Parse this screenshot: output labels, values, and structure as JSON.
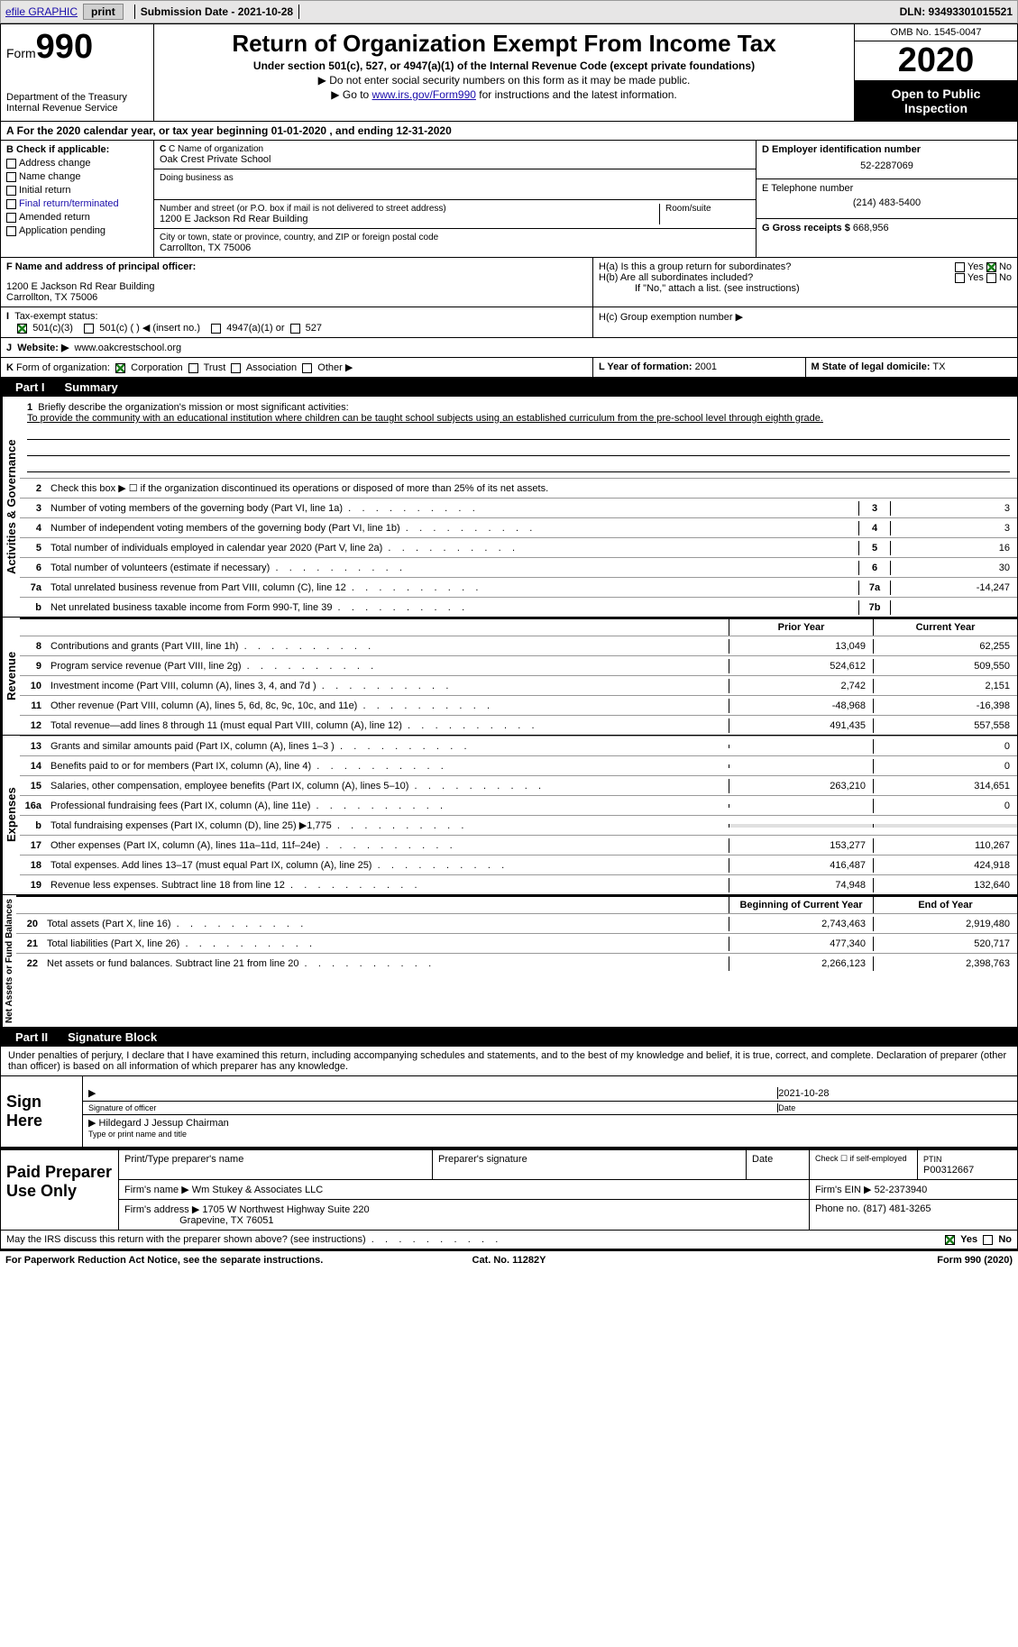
{
  "topbar": {
    "efile": "efile GRAPHIC",
    "print": "print",
    "submission": "Submission Date - 2021-10-28",
    "dln": "DLN: 93493301015521"
  },
  "header": {
    "form_label": "Form",
    "form_num": "990",
    "dept1": "Department of the Treasury",
    "dept2": "Internal Revenue Service",
    "title": "Return of Organization Exempt From Income Tax",
    "subtitle": "Under section 501(c), 527, or 4947(a)(1) of the Internal Revenue Code (except private foundations)",
    "arrow1": "▶ Do not enter social security numbers on this form as it may be made public.",
    "arrow2_pre": "▶ Go to ",
    "arrow2_link": "www.irs.gov/Form990",
    "arrow2_post": " for instructions and the latest information.",
    "omb": "OMB No. 1545-0047",
    "year": "2020",
    "open": "Open to Public Inspection"
  },
  "taxyear": "For the 2020 calendar year, or tax year beginning 01-01-2020    , and ending 12-31-2020",
  "sectionB": {
    "header": "B Check if applicable:",
    "items": [
      "Address change",
      "Name change",
      "Initial return",
      "Final return/terminated",
      "Amended return",
      "Application pending"
    ]
  },
  "orgName": {
    "label": "C Name of organization",
    "value": "Oak Crest Private School",
    "dba": "Doing business as"
  },
  "street": {
    "label": "Number and street (or P.O. box if mail is not delivered to street address)",
    "room_label": "Room/suite",
    "value": "1200 E Jackson Rd Rear Building"
  },
  "city": {
    "label": "City or town, state or province, country, and ZIP or foreign postal code",
    "value": "Carrollton, TX  75006"
  },
  "ein": {
    "label": "D Employer identification number",
    "value": "52-2287069"
  },
  "phone": {
    "label": "E Telephone number",
    "value": "(214) 483-5400"
  },
  "gross": {
    "label": "G Gross receipts $",
    "value": "668,956"
  },
  "officer": {
    "label": "F  Name and address of principal officer:",
    "addr1": "1200 E Jackson Rd Rear Building",
    "addr2": "Carrollton, TX  75006"
  },
  "groupH": {
    "ha": "H(a)  Is this a group return for subordinates?",
    "hb": "H(b)  Are all subordinates included?",
    "hnote": "If \"No,\" attach a list. (see instructions)",
    "hc": "H(c)  Group exemption number ▶",
    "yes": "Yes",
    "no": "No"
  },
  "taxExempt": {
    "label": "Tax-exempt status:",
    "opts": [
      "501(c)(3)",
      "501(c) (  ) ◀ (insert no.)",
      "4947(a)(1) or",
      "527"
    ]
  },
  "website": {
    "label": "Website: ▶",
    "value": "www.oakcrestschool.org"
  },
  "formOrg": {
    "label": "Form of organization:",
    "opts": [
      "Corporation",
      "Trust",
      "Association",
      "Other ▶"
    ]
  },
  "yearFormed": {
    "label": "L Year of formation:",
    "value": "2001"
  },
  "domicile": {
    "label": "M State of legal domicile:",
    "value": "TX"
  },
  "part1": {
    "header": "Part I",
    "title": "Summary",
    "q1": "Briefly describe the organization's mission or most significant activities:",
    "mission": "To provide the community with an educational institution where children can be taught school subjects using an established curriculum from the pre-school level through eighth grade.",
    "q2": "Check this box ▶ ☐  if the organization discontinued its operations or disposed of more than 25% of its net assets.",
    "sideA": "Activities & Governance",
    "sideB": "Revenue",
    "sideC": "Expenses",
    "sideD": "Net Assets or Fund Balances",
    "prior_year": "Prior Year",
    "current_year": "Current Year",
    "boy": "Beginning of Current Year",
    "eoy": "End of Year",
    "rows_gov": [
      {
        "n": "3",
        "t": "Number of voting members of the governing body (Part VI, line 1a)",
        "box": "3",
        "v": "3"
      },
      {
        "n": "4",
        "t": "Number of independent voting members of the governing body (Part VI, line 1b)",
        "box": "4",
        "v": "3"
      },
      {
        "n": "5",
        "t": "Total number of individuals employed in calendar year 2020 (Part V, line 2a)",
        "box": "5",
        "v": "16"
      },
      {
        "n": "6",
        "t": "Total number of volunteers (estimate if necessary)",
        "box": "6",
        "v": "30"
      },
      {
        "n": "7a",
        "t": "Total unrelated business revenue from Part VIII, column (C), line 12",
        "box": "7a",
        "v": "-14,247"
      },
      {
        "n": "b",
        "t": "Net unrelated business taxable income from Form 990-T, line 39",
        "box": "7b",
        "v": ""
      }
    ],
    "rows_rev": [
      {
        "n": "8",
        "t": "Contributions and grants (Part VIII, line 1h)",
        "py": "13,049",
        "cy": "62,255"
      },
      {
        "n": "9",
        "t": "Program service revenue (Part VIII, line 2g)",
        "py": "524,612",
        "cy": "509,550"
      },
      {
        "n": "10",
        "t": "Investment income (Part VIII, column (A), lines 3, 4, and 7d )",
        "py": "2,742",
        "cy": "2,151"
      },
      {
        "n": "11",
        "t": "Other revenue (Part VIII, column (A), lines 5, 6d, 8c, 9c, 10c, and 11e)",
        "py": "-48,968",
        "cy": "-16,398"
      },
      {
        "n": "12",
        "t": "Total revenue—add lines 8 through 11 (must equal Part VIII, column (A), line 12)",
        "py": "491,435",
        "cy": "557,558"
      }
    ],
    "rows_exp": [
      {
        "n": "13",
        "t": "Grants and similar amounts paid (Part IX, column (A), lines 1–3 )",
        "py": "",
        "cy": "0"
      },
      {
        "n": "14",
        "t": "Benefits paid to or for members (Part IX, column (A), line 4)",
        "py": "",
        "cy": "0"
      },
      {
        "n": "15",
        "t": "Salaries, other compensation, employee benefits (Part IX, column (A), lines 5–10)",
        "py": "263,210",
        "cy": "314,651"
      },
      {
        "n": "16a",
        "t": "Professional fundraising fees (Part IX, column (A), line 11e)",
        "py": "",
        "cy": "0"
      },
      {
        "n": "b",
        "t": "Total fundraising expenses (Part IX, column (D), line 25) ▶1,775",
        "py": "__GRAY__",
        "cy": "__GRAY__"
      },
      {
        "n": "17",
        "t": "Other expenses (Part IX, column (A), lines 11a–11d, 11f–24e)",
        "py": "153,277",
        "cy": "110,267"
      },
      {
        "n": "18",
        "t": "Total expenses. Add lines 13–17 (must equal Part IX, column (A), line 25)",
        "py": "416,487",
        "cy": "424,918"
      },
      {
        "n": "19",
        "t": "Revenue less expenses. Subtract line 18 from line 12",
        "py": "74,948",
        "cy": "132,640"
      }
    ],
    "rows_net": [
      {
        "n": "20",
        "t": "Total assets (Part X, line 16)",
        "py": "2,743,463",
        "cy": "2,919,480"
      },
      {
        "n": "21",
        "t": "Total liabilities (Part X, line 26)",
        "py": "477,340",
        "cy": "520,717"
      },
      {
        "n": "22",
        "t": "Net assets or fund balances. Subtract line 21 from line 20",
        "py": "2,266,123",
        "cy": "2,398,763"
      }
    ]
  },
  "part2": {
    "header": "Part II",
    "title": "Signature Block",
    "decl": "Under penalties of perjury, I declare that I have examined this return, including accompanying schedules and statements, and to the best of my knowledge and belief, it is true, correct, and complete. Declaration of preparer (other than officer) is based on all information of which preparer has any knowledge.",
    "sign_here": "Sign Here",
    "sig_officer": "Signature of officer",
    "sig_date": "2021-10-28",
    "date_label": "Date",
    "name_title": "Hildegard J Jessup Chairman",
    "name_label": "Type or print name and title",
    "paid_prep": "Paid Preparer Use Only",
    "prep_name_label": "Print/Type preparer's name",
    "prep_sig_label": "Preparer's signature",
    "prep_date_label": "Date",
    "check_self": "Check ☐ if self-employed",
    "ptin_label": "PTIN",
    "ptin": "P00312667",
    "firm_name_label": "Firm's name    ▶",
    "firm_name": "Wm Stukey & Associates LLC",
    "firm_ein_label": "Firm's EIN ▶",
    "firm_ein": "52-2373940",
    "firm_addr_label": "Firm's address ▶",
    "firm_addr1": "1705 W Northwest Highway Suite 220",
    "firm_addr2": "Grapevine, TX  76051",
    "firm_phone_label": "Phone no.",
    "firm_phone": "(817) 481-3265",
    "discuss": "May the IRS discuss this return with the preparer shown above? (see instructions)",
    "footer_left": "For Paperwork Reduction Act Notice, see the separate instructions.",
    "footer_mid": "Cat. No. 11282Y",
    "footer_right": "Form 990 (2020)"
  }
}
